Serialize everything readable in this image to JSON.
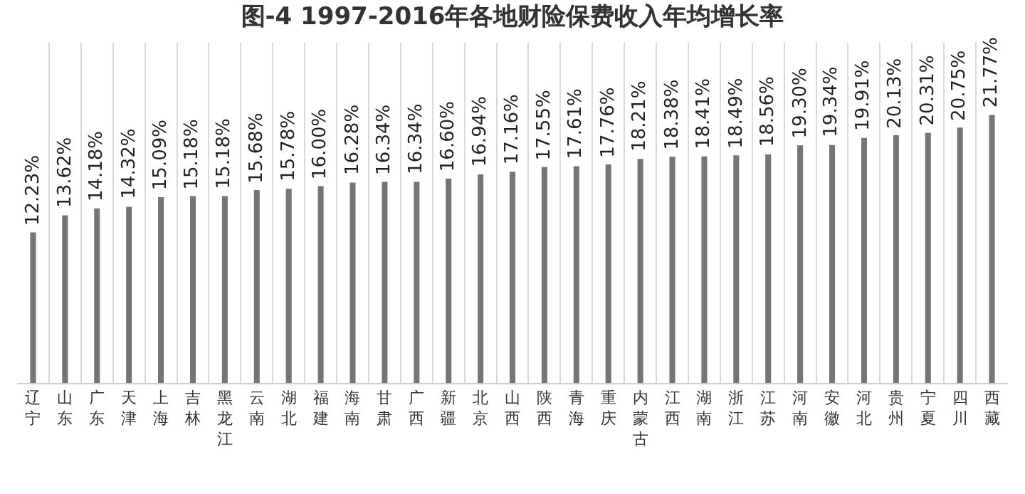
{
  "chart_data": {
    "type": "bar",
    "title": "图-4 1997-2016年各地财险保费收入年均增长率",
    "categories": [
      "辽宁",
      "山东",
      "广东",
      "天津",
      "上海",
      "吉林",
      "黑龙江",
      "云南",
      "湖北",
      "福建",
      "海南",
      "甘肃",
      "广西",
      "新疆",
      "北京",
      "山西",
      "陕西",
      "青海",
      "重庆",
      "内蒙古",
      "江西",
      "湖南",
      "浙江",
      "江苏",
      "河南",
      "安徽",
      "河北",
      "贵州",
      "宁夏",
      "四川",
      "西藏"
    ],
    "values": [
      12.23,
      13.62,
      14.18,
      14.32,
      15.09,
      15.18,
      15.18,
      15.68,
      15.78,
      16.0,
      16.28,
      16.34,
      16.34,
      16.6,
      16.94,
      17.16,
      17.55,
      17.61,
      17.76,
      18.21,
      18.38,
      18.41,
      18.49,
      18.56,
      19.3,
      19.34,
      19.91,
      20.13,
      20.31,
      20.75,
      21.77
    ],
    "value_labels": [
      "12.23%",
      "13.62%",
      "14.18%",
      "14.32%",
      "15.09%",
      "15.18%",
      "15.18%",
      "15.68%",
      "15.78%",
      "16.00%",
      "16.28%",
      "16.34%",
      "16.34%",
      "16.60%",
      "16.94%",
      "17.16%",
      "17.55%",
      "17.61%",
      "17.76%",
      "18.21%",
      "18.38%",
      "18.41%",
      "18.49%",
      "18.56%",
      "19.30%",
      "19.34%",
      "19.91%",
      "20.13%",
      "20.31%",
      "20.75%",
      "21.77%"
    ],
    "color": "#757575",
    "grid": "x"
  }
}
